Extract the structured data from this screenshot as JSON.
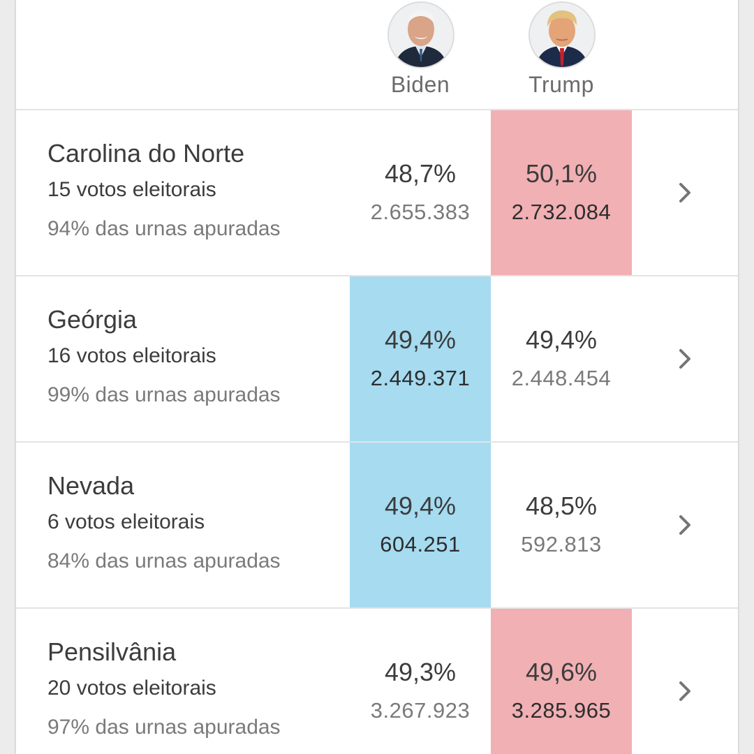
{
  "candidates": {
    "biden": {
      "name": "Biden",
      "icon": "biden-avatar-icon"
    },
    "trump": {
      "name": "Trump",
      "icon": "trump-avatar-icon"
    }
  },
  "colors": {
    "democrat_lead": "#a6dbf0",
    "republican_lead": "#f1b0b4"
  },
  "states": [
    {
      "name": "Carolina do Norte",
      "electoral_votes": "15 votos eleitorais",
      "counted": "94% das urnas apuradas",
      "biden": {
        "pct": "48,7%",
        "votes": "2.655.383"
      },
      "trump": {
        "pct": "50,1%",
        "votes": "2.732.084"
      },
      "leader": "trump"
    },
    {
      "name": "Geórgia",
      "electoral_votes": "16 votos eleitorais",
      "counted": "99% das urnas apuradas",
      "biden": {
        "pct": "49,4%",
        "votes": "2.449.371"
      },
      "trump": {
        "pct": "49,4%",
        "votes": "2.448.454"
      },
      "leader": "biden"
    },
    {
      "name": "Nevada",
      "electoral_votes": "6 votos eleitorais",
      "counted": "84% das urnas apuradas",
      "biden": {
        "pct": "49,4%",
        "votes": "604.251"
      },
      "trump": {
        "pct": "48,5%",
        "votes": "592.813"
      },
      "leader": "biden"
    },
    {
      "name": "Pensilvânia",
      "electoral_votes": "20 votos eleitorais",
      "counted": "97% das urnas apuradas",
      "biden": {
        "pct": "49,3%",
        "votes": "3.267.923"
      },
      "trump": {
        "pct": "49,6%",
        "votes": "3.285.965"
      },
      "leader": "trump"
    }
  ]
}
